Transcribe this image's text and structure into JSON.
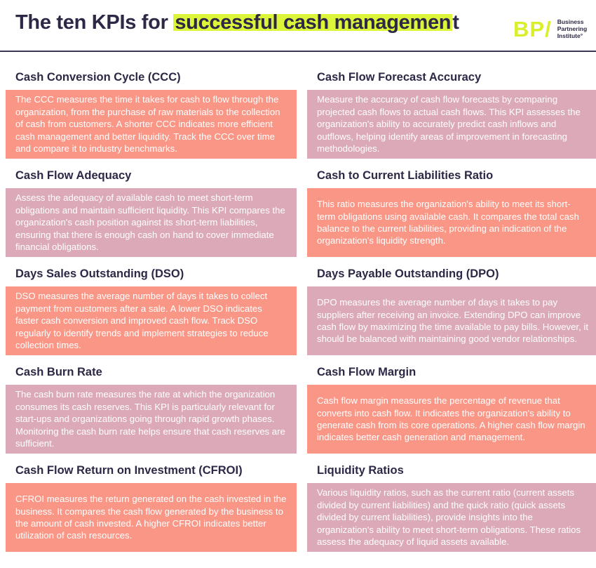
{
  "header": {
    "title_prefix": "The ten KPIs for ",
    "title_highlight": "successful cash managemen",
    "title_suffix": "t",
    "logo_mark": "BP/",
    "logo_lines": [
      "Business",
      "Partnering",
      "Institute°"
    ]
  },
  "colors": {
    "coral": "#fa9686",
    "mauve": "#dba9b7",
    "highlight": "#dcf53a",
    "text": "#2c2846"
  },
  "kpis": [
    {
      "title": "Cash Conversion Cycle (CCC)",
      "text": "The CCC measures the time it takes for cash to flow through the organization, from the purchase of raw materials to the collection of cash from customers. A shorter CCC indicates more efficient cash management and better liquidity. Track the CCC over time and compare it to industry benchmarks."
    },
    {
      "title": "Cash Flow Forecast Accuracy",
      "text": "Measure the accuracy of cash flow forecasts by comparing projected cash flows to actual cash flows. This KPI assesses the organization's ability to accurately predict cash inflows and outflows, helping identify areas of improvement in forecasting methodologies."
    },
    {
      "title": "Cash Flow Adequacy",
      "text": "Assess the adequacy of available cash to meet short-term obligations and maintain sufficient liquidity. This KPI compares the organization's cash position against its short-term liabilities, ensuring that there is enough cash on hand to cover immediate financial obligations."
    },
    {
      "title": "Cash to Current Liabilities Ratio",
      "text": "This ratio measures the organization's ability to meet its short-term obligations using available cash. It compares the total cash balance to the current liabilities, providing an indication of the organization's liquidity strength."
    },
    {
      "title": "Days Sales Outstanding (DSO)",
      "text": "DSO measures the average number of days it takes to collect payment from customers after a sale. A lower DSO indicates faster cash conversion and improved cash flow. Track DSO regularly to identify trends and implement strategies to reduce collection times."
    },
    {
      "title": "Days Payable Outstanding (DPO)",
      "text": "DPO measures the average number of days it takes to pay suppliers after receiving an invoice. Extending DPO can improve cash flow by maximizing the time available to pay bills. However, it should be balanced with maintaining good vendor relationships."
    },
    {
      "title": "Cash Burn Rate",
      "text": "The cash burn rate measures the rate at which the organization consumes its cash reserves. This KPI is particularly relevant for start-ups and organizations going through rapid growth phases. Monitoring the cash burn rate helps ensure that cash reserves are sufficient."
    },
    {
      "title": "Cash Flow Margin",
      "text": "Cash flow margin measures the percentage of revenue that converts into cash flow. It indicates the organization's ability to generate cash from its core operations. A higher cash flow margin indicates better cash generation and management."
    },
    {
      "title": "Cash Flow Return on Investment (CFROI)",
      "text": "CFROI measures the return generated on the cash invested in the business. It compares the cash flow generated by the business to the amount of cash invested. A higher CFROI indicates better utilization of cash resources."
    },
    {
      "title": "Liquidity Ratios",
      "text": "Various liquidity ratios, such as the current ratio (current assets divided by current liabilities) and the quick ratio (quick assets divided by current liabilities), provide insights into the organization's ability to meet short-term obligations. These ratios assess the adequacy of liquid assets available."
    }
  ]
}
